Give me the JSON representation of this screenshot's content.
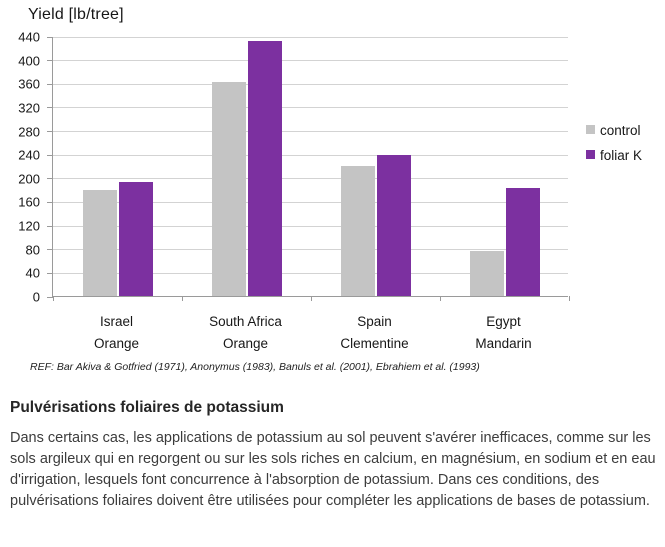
{
  "chart": {
    "title": "Yield [lb/tree]",
    "ref_note": "REF: Bar Akiva & Gotfried (1971), Anonymus (1983), Banuls et al. (2001), Ebrahiem et al. (1993)"
  },
  "chart_data": {
    "type": "bar",
    "title": "Yield [lb/tree]",
    "categories": [
      "Israel Orange",
      "South Africa Orange",
      "Spain Clementine",
      "Egypt Mandarin"
    ],
    "category_lines": [
      [
        "Israel",
        "Orange"
      ],
      [
        "South Africa",
        "Orange"
      ],
      [
        "Spain",
        "Clementine"
      ],
      [
        "Egypt",
        "Mandarin"
      ]
    ],
    "series": [
      {
        "name": "control",
        "color": "#c4c4c4",
        "values": [
          180,
          362,
          220,
          76
        ]
      },
      {
        "name": "foliar K",
        "color": "#7c30a0",
        "values": [
          193,
          431,
          238,
          182
        ]
      }
    ],
    "ylim": [
      0,
      440
    ],
    "ytick_step": 40,
    "grid": true,
    "legend_position": "right",
    "colors": {
      "grid": "#d3d3d3",
      "axis": "#9a9a9a",
      "control": "#c4c4c4",
      "foliar_k": "#7c30a0"
    }
  },
  "article": {
    "heading": "Pulvérisations foliaires de potassium",
    "body": "Dans certains cas, les applications de potassium au sol peuvent s'avérer inefficaces, comme sur les sols argileux qui en regorgent ou sur les sols riches en calcium, en magnésium, en sodium et en eau d'irrigation, lesquels font concurrence à l'absorption de potassium. Dans ces conditions, des pulvérisations foliaires doivent être utilisées pour compléter les applications de bases de potassium."
  }
}
